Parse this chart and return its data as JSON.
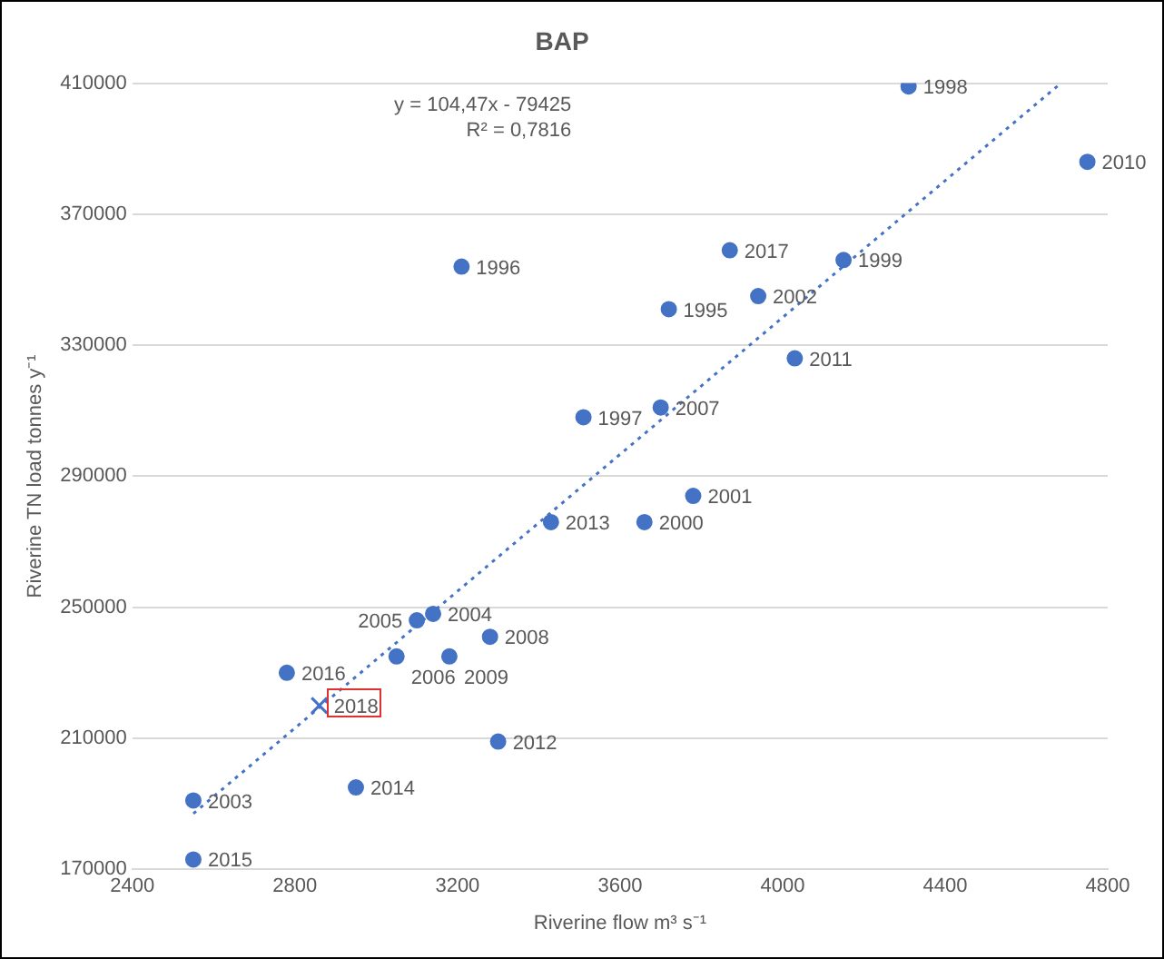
{
  "chart_data": {
    "type": "scatter",
    "title": "BAP",
    "xlabel": "Riverine flow m³ s⁻¹",
    "ylabel": "Riverine TN load tonnes y⁻¹",
    "xlim": [
      2400,
      4800
    ],
    "xticks": [
      2400,
      2800,
      3200,
      3600,
      4000,
      4400,
      4800
    ],
    "ylim": [
      170000,
      410000
    ],
    "yticks": [
      170000,
      210000,
      250000,
      290000,
      330000,
      370000,
      410000
    ],
    "grid": "y",
    "legend": false,
    "series": [
      {
        "marker": "circle",
        "color": "#4472c4",
        "x": [
          4310,
          4750,
          3210,
          3870,
          4150,
          3940,
          3720,
          4030,
          3510,
          3700,
          3780,
          3430,
          3660,
          3140,
          3100,
          3280,
          3050,
          3180,
          2780,
          3300,
          2950,
          2550,
          2550
        ],
        "values": [
          409000,
          386000,
          354000,
          359000,
          356000,
          345000,
          341000,
          326000,
          308000,
          311000,
          284000,
          276000,
          276000,
          248000,
          246000,
          241000,
          235000,
          235000,
          230000,
          209000,
          195000,
          191000,
          173000
        ]
      },
      {
        "marker": "cross",
        "color": "#4472c4",
        "x": [
          2860
        ],
        "values": [
          220000
        ]
      },
      {
        "type": "line",
        "marker": "none",
        "line_style": "dotted",
        "color": "#4472c4",
        "x": [
          2550,
          4680
        ],
        "values": [
          187000,
          409500
        ]
      }
    ],
    "annotations": [
      "y = 104,47x - 79425\nR² = 0,7816",
      {
        "text": "1998",
        "x": 4310,
        "y": 409000
      },
      {
        "text": "2010",
        "x": 4750,
        "y": 386000
      },
      {
        "text": "1996",
        "x": 3210,
        "y": 354000
      },
      {
        "text": "2017",
        "x": 3870,
        "y": 359000
      },
      {
        "text": "1999",
        "x": 4150,
        "y": 356000
      },
      {
        "text": "2002",
        "x": 3940,
        "y": 345000
      },
      {
        "text": "1995",
        "x": 3720,
        "y": 341000
      },
      {
        "text": "2011",
        "x": 4030,
        "y": 326000
      },
      {
        "text": "1997",
        "x": 3510,
        "y": 308000
      },
      {
        "text": "2007",
        "x": 3700,
        "y": 311000
      },
      {
        "text": "2001",
        "x": 3780,
        "y": 284000
      },
      {
        "text": "2013",
        "x": 3430,
        "y": 276000
      },
      {
        "text": "2000",
        "x": 3660,
        "y": 276000
      },
      {
        "text": "2004",
        "x": 3140,
        "y": 248000
      },
      {
        "text": "2005",
        "x": 3100,
        "y": 246000
      },
      {
        "text": "2008",
        "x": 3280,
        "y": 241000
      },
      {
        "text": "2006",
        "x": 3050,
        "y": 235000
      },
      {
        "text": "2009",
        "x": 3180,
        "y": 235000
      },
      {
        "text": "2016",
        "x": 2780,
        "y": 230000
      },
      {
        "text": "2018",
        "x": 2860,
        "y": 220000
      },
      {
        "text": "2012",
        "x": 3300,
        "y": 209000
      },
      {
        "text": "2014",
        "x": 2950,
        "y": 195000
      },
      {
        "text": "2003",
        "x": 2550,
        "y": 191000
      },
      {
        "text": "2015",
        "x": 2550,
        "y": 173000
      }
    ]
  }
}
